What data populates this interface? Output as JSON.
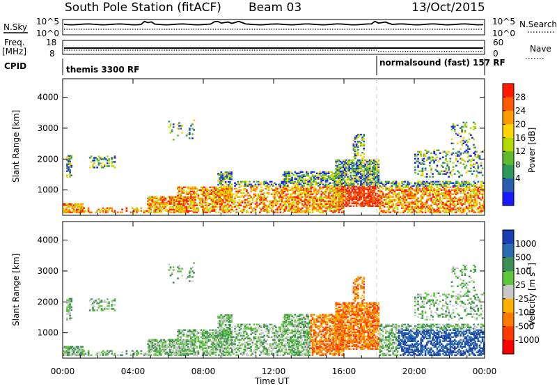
{
  "header": {
    "title": "South Pole Station (fitACF)",
    "beam": "Beam 03",
    "date": "13/Oct/2015"
  },
  "left_labels": {
    "nsky": "N.Sky",
    "freq": "Freq.",
    "freq_unit": "[MHz]",
    "cpid": "CPID"
  },
  "right_labels": {
    "nsearch": "N.Search",
    "nave": "Nave"
  },
  "top_panels": {
    "nsky_ticks": [
      "10^5",
      "10^0"
    ],
    "nsearch_ticks": [
      "10^5",
      "10^0"
    ],
    "freq_ticks": [
      "18",
      "8"
    ],
    "nave_ticks": [
      "60",
      "0"
    ]
  },
  "cpid_segments": [
    {
      "label": "themis 3300 RF",
      "start_hour": 0
    },
    {
      "label": "normalsound (fast) 157 RF",
      "start_hour": 18
    }
  ],
  "chart_data": [
    {
      "type": "heatmap",
      "name": "power",
      "ylabel": "Slant Range [km]",
      "x_range_hours": [
        0,
        24
      ],
      "ylim": [
        180,
        4600
      ],
      "yticks": [
        1000,
        2000,
        3000,
        4000
      ],
      "colorbar": {
        "label": "Power [dB]",
        "ticks": [
          "28",
          "24",
          "20",
          "16",
          "12",
          "8",
          "4"
        ],
        "colors": [
          "#ff1a00",
          "#ff5a00",
          "#ff9a00",
          "#ffd400",
          "#b5d900",
          "#5fbb2e",
          "#2e9a5a",
          "#2a5fb0",
          "#1a1aff"
        ]
      }
    },
    {
      "type": "heatmap",
      "name": "velocity",
      "ylabel": "Slant Range [km]",
      "xlabel": "Time UT",
      "x_range_hours": [
        0,
        24
      ],
      "ylim": [
        180,
        4600
      ],
      "yticks": [
        1000,
        2000,
        3000,
        4000
      ],
      "xticks": [
        "00:00",
        "04:00",
        "08:00",
        "12:00",
        "16:00",
        "20:00",
        "00:00"
      ],
      "colorbar": {
        "label": "Velocity [m s",
        "label_sup": "-1",
        "label_close": "]",
        "ticks": [
          "1000",
          "500",
          "100",
          "25",
          "-25",
          "-100",
          "-500",
          "-1000"
        ],
        "colors": [
          "#1a3fb0",
          "#2a6db0",
          "#3d8f55",
          "#5fc83a",
          "#c8c8c8",
          "#ffb000",
          "#ff7a00",
          "#ff3a00",
          "#ff0000"
        ]
      }
    }
  ]
}
